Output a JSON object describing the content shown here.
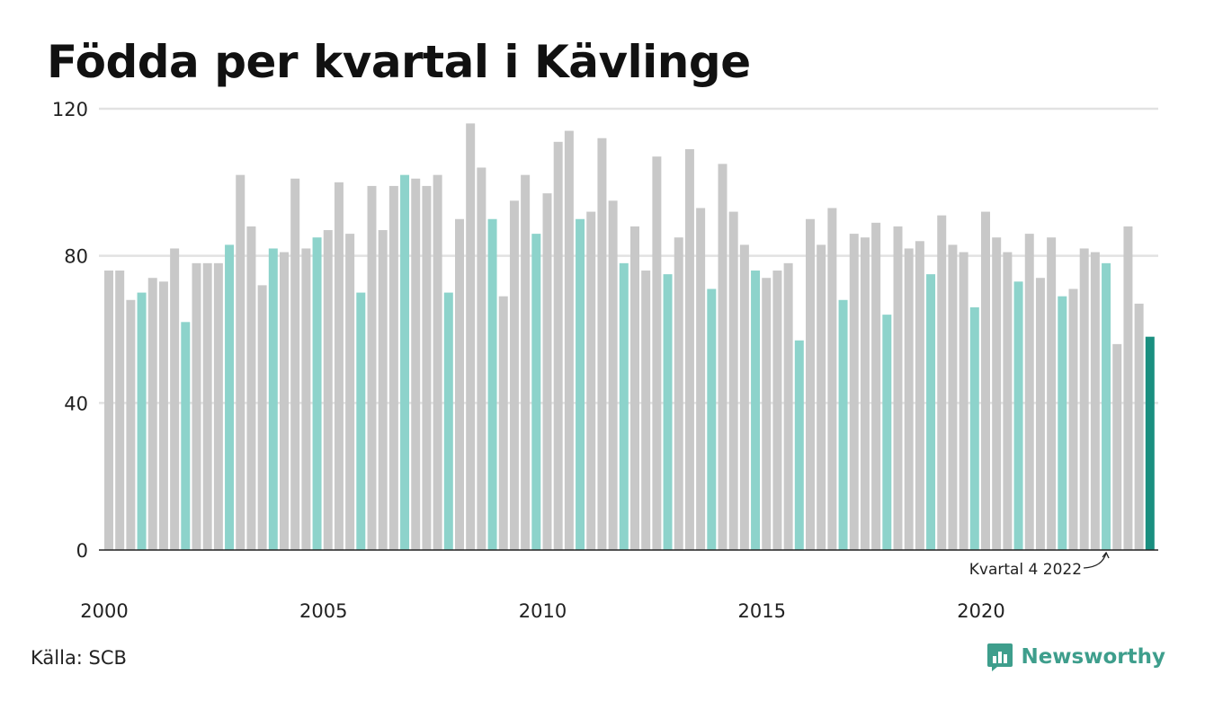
{
  "title": "Födda per kvartal i Kävlinge",
  "source": "Källa: SCB",
  "brand": {
    "name": "Newsworthy",
    "icon": "newsworthy-logo-icon",
    "color": "#3e9e8c"
  },
  "colors": {
    "default": "#c8c8c8",
    "q4": "#8dd3cb",
    "latest": "#1a8f80",
    "gridline": "#e2e2e2",
    "axis": "#222222"
  },
  "chart_data": {
    "type": "bar",
    "title": "Födda per kvartal i Kävlinge",
    "xlabel": "",
    "ylabel": "",
    "ylim": [
      0,
      120
    ],
    "y_ticks": [
      0,
      40,
      80,
      120
    ],
    "x_tick_labels": [
      "2000",
      "2005",
      "2010",
      "2015",
      "2020"
    ],
    "x_tick_years": [
      2000,
      2005,
      2010,
      2015,
      2020
    ],
    "start_year": 2000,
    "start_quarter": 1,
    "grid": true,
    "highlight": "Q4 bars highlighted in teal; latest bar in dark teal",
    "annotation": {
      "text": "Kvartal 4 2022",
      "target_index": 91
    },
    "categories": [
      "2000 Q1",
      "2000 Q2",
      "2000 Q3",
      "2000 Q4",
      "2001 Q1",
      "2001 Q2",
      "2001 Q3",
      "2001 Q4",
      "2002 Q1",
      "2002 Q2",
      "2002 Q3",
      "2002 Q4",
      "2003 Q1",
      "2003 Q2",
      "2003 Q3",
      "2003 Q4",
      "2004 Q1",
      "2004 Q2",
      "2004 Q3",
      "2004 Q4",
      "2005 Q1",
      "2005 Q2",
      "2005 Q3",
      "2005 Q4",
      "2006 Q1",
      "2006 Q2",
      "2006 Q3",
      "2006 Q4",
      "2007 Q1",
      "2007 Q2",
      "2007 Q3",
      "2007 Q4",
      "2008 Q1",
      "2008 Q2",
      "2008 Q3",
      "2008 Q4",
      "2009 Q1",
      "2009 Q2",
      "2009 Q3",
      "2009 Q4",
      "2010 Q1",
      "2010 Q2",
      "2010 Q3",
      "2010 Q4",
      "2011 Q1",
      "2011 Q2",
      "2011 Q3",
      "2011 Q4",
      "2012 Q1",
      "2012 Q2",
      "2012 Q3",
      "2012 Q4",
      "2013 Q1",
      "2013 Q2",
      "2013 Q3",
      "2013 Q4",
      "2014 Q1",
      "2014 Q2",
      "2014 Q3",
      "2014 Q4",
      "2015 Q1",
      "2015 Q2",
      "2015 Q3",
      "2015 Q4",
      "2016 Q1",
      "2016 Q2",
      "2016 Q3",
      "2016 Q4",
      "2017 Q1",
      "2017 Q2",
      "2017 Q3",
      "2017 Q4",
      "2018 Q1",
      "2018 Q2",
      "2018 Q3",
      "2018 Q4",
      "2019 Q1",
      "2019 Q2",
      "2019 Q3",
      "2019 Q4",
      "2020 Q1",
      "2020 Q2",
      "2020 Q3",
      "2020 Q4",
      "2021 Q1",
      "2021 Q2",
      "2021 Q3",
      "2021 Q4",
      "2022 Q1",
      "2022 Q2",
      "2022 Q3",
      "2022 Q4",
      "2023 Q1",
      "2023 Q2",
      "2023 Q3",
      "2023 Q4"
    ],
    "values": [
      76,
      76,
      68,
      70,
      74,
      73,
      82,
      62,
      78,
      78,
      78,
      83,
      102,
      88,
      72,
      82,
      81,
      101,
      82,
      85,
      87,
      100,
      86,
      70,
      99,
      87,
      99,
      102,
      101,
      99,
      102,
      70,
      90,
      116,
      104,
      90,
      69,
      95,
      102,
      86,
      97,
      111,
      114,
      90,
      92,
      112,
      95,
      78,
      88,
      76,
      107,
      75,
      85,
      109,
      93,
      71,
      105,
      92,
      83,
      76,
      74,
      76,
      78,
      57,
      90,
      83,
      93,
      68,
      86,
      85,
      89,
      64,
      88,
      82,
      84,
      75,
      91,
      83,
      81,
      66,
      92,
      85,
      81,
      73,
      86,
      74,
      85,
      69,
      71,
      82,
      81,
      78,
      56,
      88,
      67,
      58
    ]
  }
}
